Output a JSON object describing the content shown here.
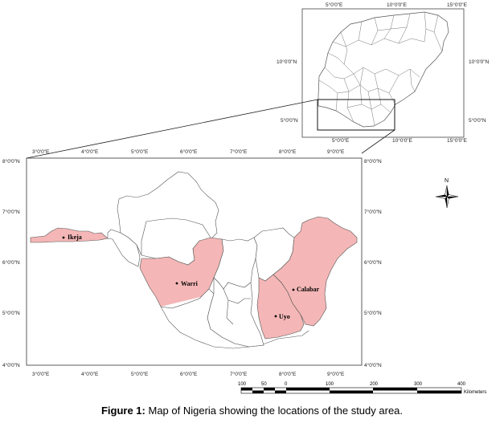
{
  "inset_map": {
    "top_ticks": [
      "5°0'0\"E",
      "10°0'0\"E",
      "15°0'0\"E"
    ],
    "bottom_ticks": [
      "5°0'0\"E",
      "10°0'0\"E",
      "15°0'0\"E"
    ],
    "left_ticks": [
      "10°0'0\"N",
      "5°0'0\"N"
    ],
    "right_ticks": [
      "10°0'0\"N",
      "5°0'0\"N"
    ]
  },
  "main_map": {
    "top_ticks": [
      "3°0'0\"E",
      "4°0'0\"E",
      "5°0'0\"E",
      "6°0'0\"E",
      "7°0'0\"E",
      "8°0'0\"E",
      "9°0'0\"E"
    ],
    "bottom_ticks": [
      "3°0'0\"E",
      "4°0'0\"E",
      "5°0'0\"E",
      "6°0'0\"E",
      "7°0'0\"E",
      "8°0'0\"E",
      "9°0'0\"E"
    ],
    "left_ticks": [
      "8°0'0\"N",
      "7°0'0\"N",
      "6°0'0\"N",
      "5°0'0\"N",
      "4°0'0\"N"
    ],
    "right_ticks": [
      "8°0'0\"N",
      "7°0'0\"N",
      "6°0'0\"N",
      "5°0'0\"N",
      "4°0'0\"N"
    ],
    "cities": {
      "ikeja": "Ikeja",
      "warri": "Warri",
      "calabar": "Calabar",
      "uyo": "Uyo"
    },
    "highlight_color": "#f4b6b6"
  },
  "north_arrow": {
    "label": "N",
    "icon": "compass-rose-icon"
  },
  "scale_bar": {
    "labels": [
      "100",
      "50",
      "0",
      "100",
      "200",
      "300",
      "400"
    ],
    "unit": "Kilometers"
  },
  "caption": {
    "label": "Figure 1:",
    "text": "Map of Nigeria showing the locations of the study area."
  }
}
